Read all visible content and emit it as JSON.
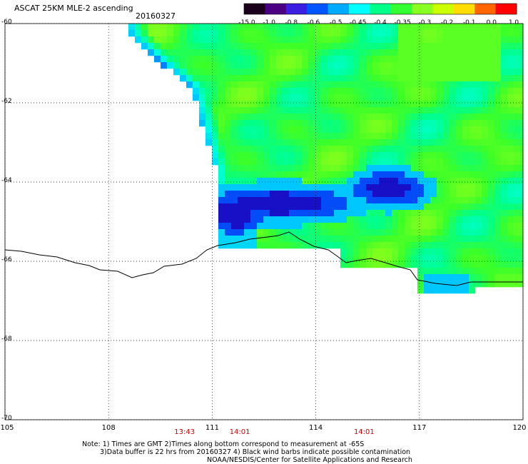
{
  "header": {
    "title": "ASCAT 25KM MLE-2 ascending",
    "date": "20160327"
  },
  "colorbar": {
    "labels": [
      "-15.0",
      "-1.0",
      "-0.8",
      "-0.6",
      "-0.5",
      "-0.45",
      "-0.4",
      "-0.35",
      "-0.3",
      "-0.2",
      "-0.1",
      "0.0",
      "1.0"
    ],
    "colors": [
      "#1a001a",
      "#4b0082",
      "#3c1ee0",
      "#0055ff",
      "#00aaff",
      "#00ffff",
      "#00ff88",
      "#33ff33",
      "#88ff22",
      "#ccff00",
      "#ffdd00",
      "#ff6600",
      "#ff0000"
    ]
  },
  "footer": {
    "note_line1": "Note: 1) Times are GMT 2)Times along bottom correspond to measurement at -65S",
    "note_line2": "3)Data buffer is 22 hrs from 20160327 4) Black wind barbs indicate possible contamination",
    "note_line3": "NOAA/NESDIS/Center for Satellite Applications and Research"
  },
  "chart_data": {
    "type": "heatmap",
    "title": "ASCAT 25KM MLE-2 ascending",
    "subtitle": "20160327",
    "x_ticks": [
      "105",
      "108",
      "111",
      "114",
      "117",
      "120"
    ],
    "y_ticks": [
      "-60",
      "-62",
      "-64",
      "-66",
      "-68",
      "-70"
    ],
    "xlim": [
      105,
      120
    ],
    "ylim": [
      -70,
      -60
    ],
    "grid": true,
    "time_labels": [
      {
        "x": 110.2,
        "label": "13:43"
      },
      {
        "x": 111.8,
        "label": "14:01"
      },
      {
        "x": 115.4,
        "label": "14:01"
      }
    ],
    "colorbar_range": [
      -15.0,
      1.0
    ]
  }
}
